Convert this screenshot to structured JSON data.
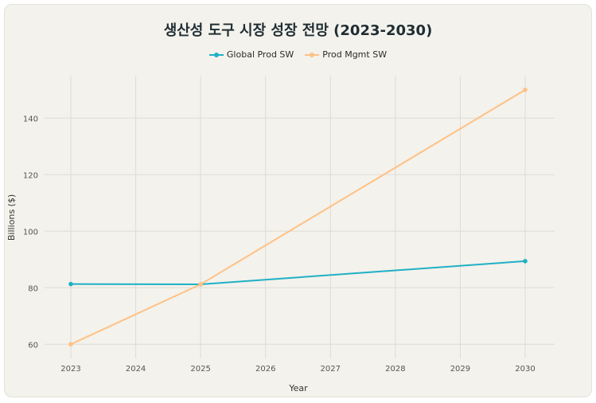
{
  "chart_data": {
    "type": "line",
    "title": "생산성 도구 시장 성장 전망 (2023-2030)",
    "xlabel": "Year",
    "ylabel": "Billions ($)",
    "x": [
      2023,
      2024,
      2025,
      2026,
      2027,
      2028,
      2029,
      2030
    ],
    "xlim": [
      2023,
      2030
    ],
    "ylim": [
      55,
      155
    ],
    "yticks": [
      60,
      80,
      100,
      120,
      140
    ],
    "grid": true,
    "legend_position": "top",
    "series": [
      {
        "name": "Global Prod SW",
        "color": "#1fb0c5",
        "points": [
          [
            2023,
            81.3
          ],
          [
            2025,
            81.2
          ],
          [
            2030,
            89.4
          ]
        ]
      },
      {
        "name": "Prod Mgmt SW",
        "color": "#ffc185",
        "points": [
          [
            2023,
            60
          ],
          [
            2025,
            81.2
          ],
          [
            2030,
            150
          ]
        ]
      }
    ]
  }
}
